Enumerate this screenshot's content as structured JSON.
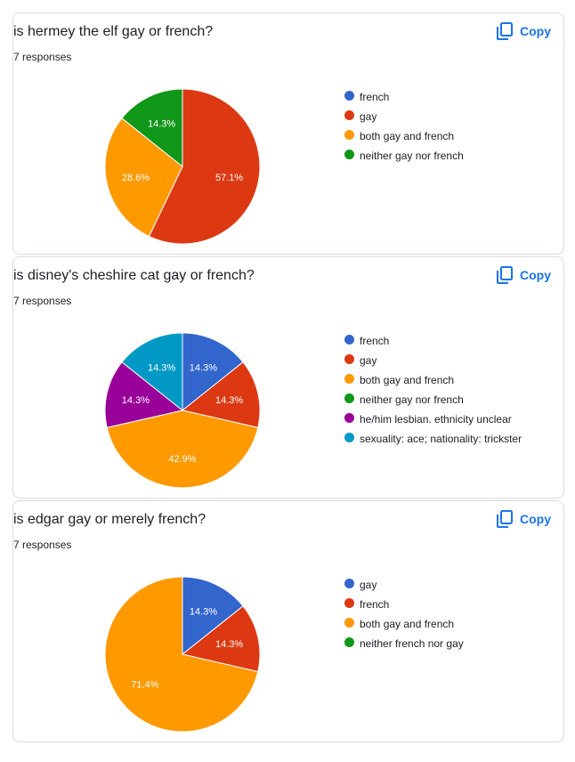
{
  "copy_label": "Copy",
  "colors": {
    "blue": "#3366cc",
    "red": "#dc3912",
    "orange": "#ff9900",
    "green": "#109618",
    "purple": "#990099",
    "teal": "#0099c6"
  },
  "questions": [
    {
      "title": "is hermey the elf gay or french?",
      "responses": "7 responses",
      "legend": [
        {
          "label": "french",
          "color": "#3366cc"
        },
        {
          "label": "gay",
          "color": "#dc3912"
        },
        {
          "label": "both gay and french",
          "color": "#ff9900"
        },
        {
          "label": "neither gay nor french",
          "color": "#109618"
        }
      ]
    },
    {
      "title": "is disney's cheshire cat gay or french?",
      "responses": "7 responses",
      "legend": [
        {
          "label": "french",
          "color": "#3366cc"
        },
        {
          "label": "gay",
          "color": "#dc3912"
        },
        {
          "label": "both gay and french",
          "color": "#ff9900"
        },
        {
          "label": "neither gay nor french",
          "color": "#109618"
        },
        {
          "label": "he/him lesbian. ethnicity unclear",
          "color": "#990099"
        },
        {
          "label": "sexuality: ace; nationality: trickster",
          "color": "#0099c6"
        }
      ]
    },
    {
      "title": "is edgar gay or merely french?",
      "responses": "7 responses",
      "legend": [
        {
          "label": "gay",
          "color": "#3366cc"
        },
        {
          "label": "french",
          "color": "#dc3912"
        },
        {
          "label": "both gay and french",
          "color": "#ff9900"
        },
        {
          "label": "neither french nor gay",
          "color": "#109618"
        }
      ]
    }
  ],
  "chart_data": [
    {
      "type": "pie",
      "slices": [
        {
          "label": "french",
          "value": 0,
          "display": "",
          "color": "#3366cc"
        },
        {
          "label": "gay",
          "value": 57.1,
          "display": "57.1%",
          "color": "#dc3912"
        },
        {
          "label": "both gay and french",
          "value": 28.6,
          "display": "28.6%",
          "color": "#ff9900"
        },
        {
          "label": "neither gay nor french",
          "value": 14.3,
          "display": "14.3%",
          "color": "#109618"
        }
      ]
    },
    {
      "type": "pie",
      "slices": [
        {
          "label": "french",
          "value": 14.3,
          "display": "14.3%",
          "color": "#3366cc"
        },
        {
          "label": "gay",
          "value": 14.3,
          "display": "14.3%",
          "color": "#dc3912"
        },
        {
          "label": "both gay and french",
          "value": 42.9,
          "display": "42.9%",
          "color": "#ff9900"
        },
        {
          "label": "neither gay nor french",
          "value": 0,
          "display": "",
          "color": "#109618"
        },
        {
          "label": "he/him lesbian. ethnicity unclear",
          "value": 14.3,
          "display": "14.3%",
          "color": "#990099"
        },
        {
          "label": "sexuality: ace; nationality: trickster",
          "value": 14.3,
          "display": "14.3%",
          "color": "#0099c6"
        }
      ]
    },
    {
      "type": "pie",
      "slices": [
        {
          "label": "gay",
          "value": 14.3,
          "display": "14.3%",
          "color": "#3366cc"
        },
        {
          "label": "french",
          "value": 14.3,
          "display": "14.3%",
          "color": "#dc3912"
        },
        {
          "label": "both gay and french",
          "value": 71.4,
          "display": "71.4%",
          "color": "#ff9900"
        },
        {
          "label": "neither french nor gay",
          "value": 0,
          "display": "",
          "color": "#109618"
        }
      ]
    }
  ]
}
